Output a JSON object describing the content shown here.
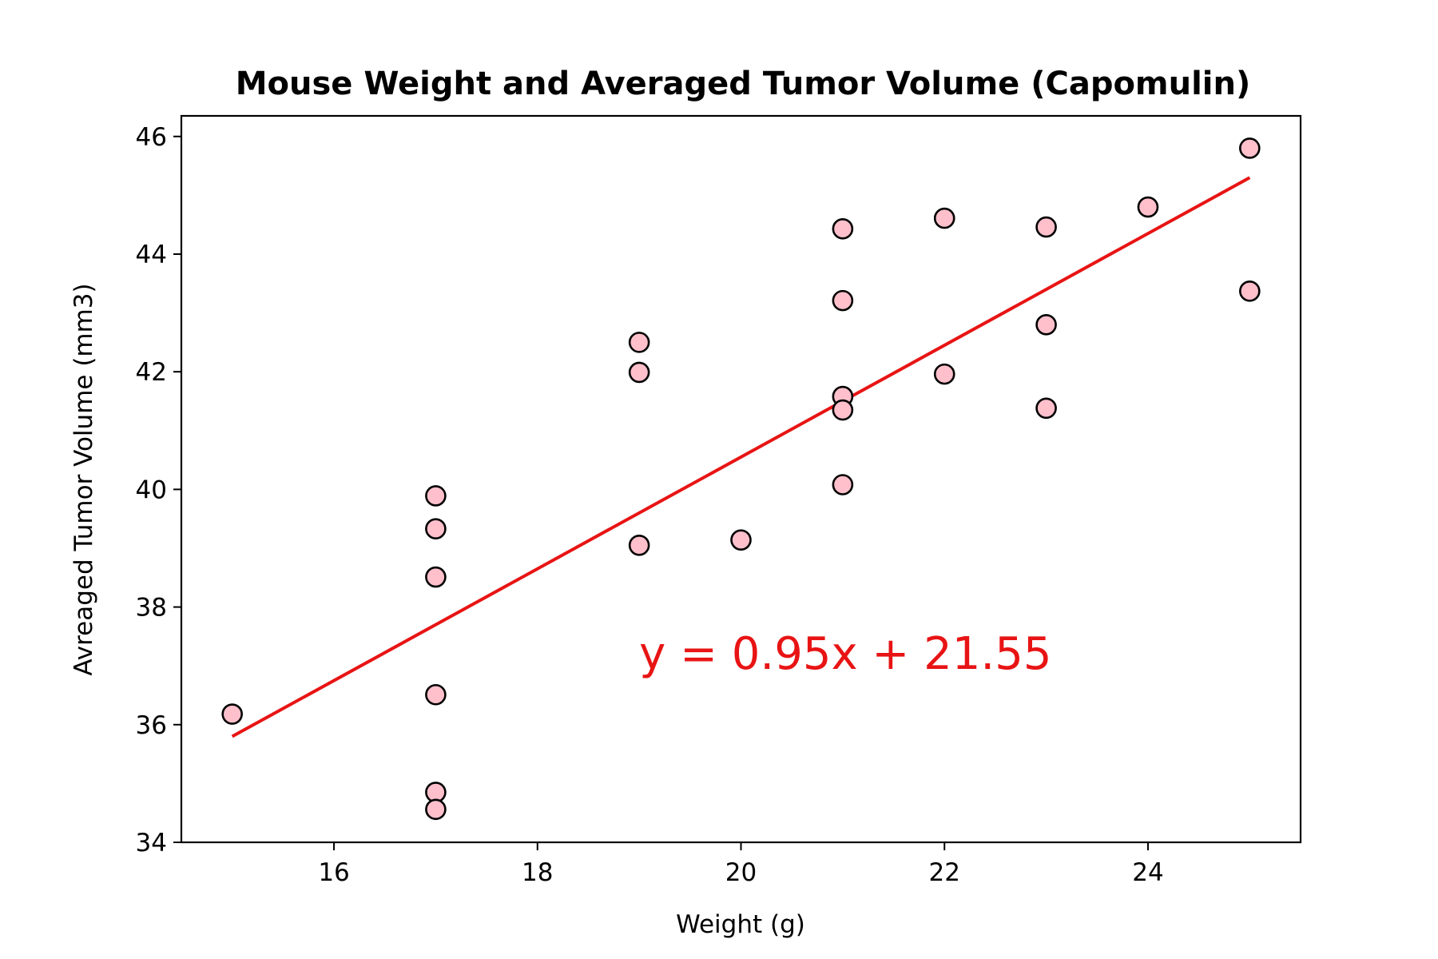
{
  "chart_data": {
    "type": "scatter",
    "title": "Mouse Weight and Averaged Tumor Volume (Capomulin)",
    "xlabel": "Weight (g)",
    "ylabel": "Avreaged Tumor Volume (mm3)",
    "xlim": [
      14.5,
      25.5
    ],
    "ylim": [
      34,
      46.35
    ],
    "xticks": [
      16,
      18,
      20,
      22,
      24
    ],
    "xtick_labels": [
      "16",
      "18",
      "20",
      "22",
      "24"
    ],
    "yticks": [
      34,
      36,
      38,
      40,
      42,
      44,
      46
    ],
    "ytick_labels": [
      "34",
      "36",
      "38",
      "40",
      "42",
      "44",
      "46"
    ],
    "grid": false,
    "series": [
      {
        "points": [
          {
            "x": 15,
            "y": 36.18
          },
          {
            "x": 17,
            "y": 39.89
          },
          {
            "x": 17,
            "y": 39.33
          },
          {
            "x": 17,
            "y": 38.51
          },
          {
            "x": 17,
            "y": 36.51
          },
          {
            "x": 17,
            "y": 34.85
          },
          {
            "x": 17,
            "y": 34.56
          },
          {
            "x": 19,
            "y": 42.5
          },
          {
            "x": 19,
            "y": 41.99
          },
          {
            "x": 19,
            "y": 39.05
          },
          {
            "x": 20,
            "y": 39.14
          },
          {
            "x": 21,
            "y": 44.43
          },
          {
            "x": 21,
            "y": 43.21
          },
          {
            "x": 21,
            "y": 41.58
          },
          {
            "x": 21,
            "y": 41.35
          },
          {
            "x": 21,
            "y": 40.08
          },
          {
            "x": 22,
            "y": 44.61
          },
          {
            "x": 22,
            "y": 41.96
          },
          {
            "x": 23,
            "y": 44.46
          },
          {
            "x": 23,
            "y": 42.8
          },
          {
            "x": 23,
            "y": 41.38
          },
          {
            "x": 24,
            "y": 44.8
          },
          {
            "x": 25,
            "y": 45.8
          },
          {
            "x": 25,
            "y": 43.37
          }
        ],
        "marker_fill": "#ffc0cb",
        "marker_edge": "#000000"
      }
    ],
    "regression_line": {
      "slope": 0.95,
      "intercept": 21.55,
      "x_range": [
        15,
        25
      ],
      "color": "#e81414"
    },
    "annotation": {
      "text": "y = 0.95x + 21.55",
      "x": 19,
      "y": 37,
      "color": "#e81414"
    }
  }
}
